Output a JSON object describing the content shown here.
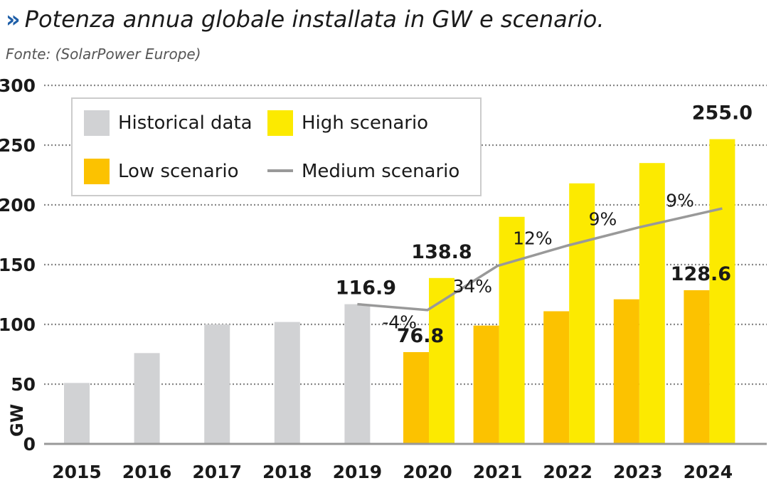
{
  "title": "Potenza annua globale installata in GW e scenario.",
  "title_marker": "»",
  "subtitle": "Fonte: (SolarPower Europe)",
  "colors": {
    "historical": "#d1d2d4",
    "low": "#fcc200",
    "high": "#fcea00",
    "medium": "#999999",
    "grid": "#888888"
  },
  "chart_data": {
    "type": "bar",
    "ylabel": "GW",
    "ylim": [
      0,
      300
    ],
    "yticks": [
      0,
      50,
      100,
      150,
      200,
      250,
      300
    ],
    "categories": [
      "2015",
      "2016",
      "2017",
      "2018",
      "2019",
      "2020",
      "2021",
      "2022",
      "2023",
      "2024"
    ],
    "grid": true,
    "legend_position": "top-left",
    "series": [
      {
        "name": "Historical data",
        "type": "bar",
        "values": [
          51,
          76,
          100,
          102,
          116.9,
          null,
          null,
          null,
          null,
          null
        ]
      },
      {
        "name": "Low scenario",
        "type": "bar",
        "values": [
          null,
          null,
          null,
          null,
          null,
          76.8,
          99,
          111,
          121,
          128.6
        ]
      },
      {
        "name": "High scenario",
        "type": "bar",
        "values": [
          null,
          null,
          null,
          null,
          null,
          138.8,
          190,
          218,
          235,
          255.0
        ]
      },
      {
        "name": "Medium scenario",
        "type": "line",
        "values": [
          null,
          null,
          null,
          null,
          116.9,
          112,
          149,
          166,
          181,
          197
        ]
      }
    ],
    "value_labels": [
      {
        "category": "2019",
        "series": "Historical data",
        "text": "116.9"
      },
      {
        "category": "2020",
        "series": "High scenario",
        "text": "138.8"
      },
      {
        "category": "2020",
        "series": "Low scenario",
        "text": "76.8"
      },
      {
        "category": "2024",
        "series": "High scenario",
        "text": "255.0"
      },
      {
        "category": "2024",
        "series": "Low scenario",
        "text": "128.6"
      }
    ],
    "growth_labels": [
      "-4%",
      "34%",
      "12%",
      "9%",
      "9%"
    ]
  }
}
